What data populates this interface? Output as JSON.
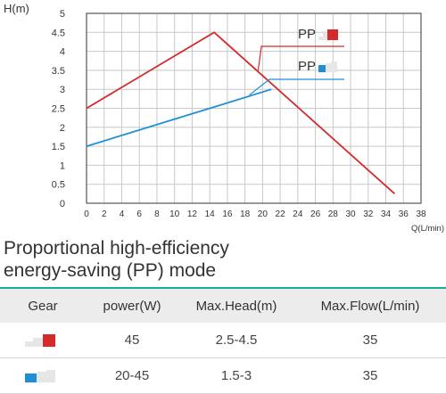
{
  "chart_data": {
    "type": "line",
    "ylabel": "H(m)",
    "xlabel": "Q(L/min)",
    "xlim": [
      0,
      38
    ],
    "ylim": [
      0,
      5
    ],
    "x_ticks": [
      0,
      2,
      4,
      6,
      8,
      10,
      12,
      14,
      16,
      18,
      20,
      22,
      24,
      26,
      28,
      30,
      32,
      34,
      36,
      38
    ],
    "y_ticks": [
      0,
      0.5,
      1,
      1.5,
      2,
      2.5,
      3,
      3.5,
      4,
      4.5,
      5
    ],
    "x_tick_labels": [
      "0",
      "2",
      "4",
      "6",
      "8",
      "10",
      "12",
      "14",
      "16",
      "18",
      "20",
      "22",
      "24",
      "26",
      "28",
      "30",
      "32",
      "34",
      "36",
      "38"
    ],
    "y_tick_labels": [
      "0",
      "0.5",
      "1",
      "1.5",
      "2",
      "2.5",
      "3",
      "3.5",
      "4",
      "4.5",
      "5"
    ],
    "grid": true,
    "series": [
      {
        "name": "PP",
        "color": "#d42a2a",
        "x": [
          0,
          14.5,
          35
        ],
        "y": [
          2.5,
          4.5,
          0.25
        ],
        "icon": "gear-high-red-icon"
      },
      {
        "name": "PP",
        "color": "#1d8fd3",
        "x": [
          0,
          21
        ],
        "y": [
          1.5,
          3.0
        ],
        "icon": "gear-low-blue-icon"
      }
    ],
    "legend_labels": [
      {
        "text": "PP",
        "series": 0,
        "anchor_x": 19.5,
        "anchor_y": 3.5
      },
      {
        "text": "PP",
        "series": 1,
        "anchor_x": 18.5,
        "anchor_y": 2.85
      }
    ]
  },
  "section": {
    "title_line1": "Proportional high-efficiency",
    "title_line2": "energy-saving (PP) mode"
  },
  "table": {
    "headers": [
      "Gear",
      "power(W)",
      "Max.Head(m)",
      "Max.Flow(L/min)"
    ],
    "rows": [
      {
        "gear_icon": "gear-high-red-icon",
        "power": "45",
        "max_head": "2.5-4.5",
        "max_flow": "35"
      },
      {
        "gear_icon": "gear-low-blue-icon",
        "power": "20-45",
        "max_head": "1.5-3",
        "max_flow": "35"
      }
    ]
  },
  "colors": {
    "red": "#d42a2a",
    "blue": "#1d8fd3",
    "accent": "#1aa9a3",
    "grid": "#c8c8c8"
  }
}
